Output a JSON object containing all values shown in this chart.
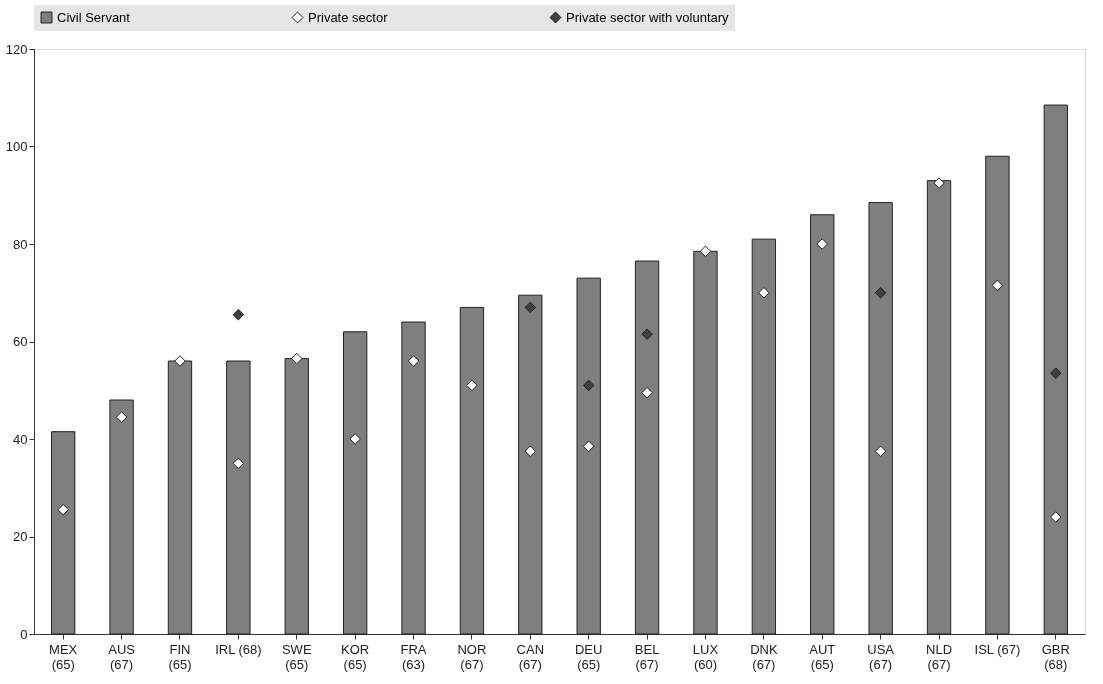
{
  "chart_data": {
    "type": "bar",
    "categories": [
      "MEX\n(65)",
      "AUS\n(67)",
      "FIN\n(65)",
      "IRL (68)",
      "SWE\n(65)",
      "KOR\n(65)",
      "FRA\n(63)",
      "NOR\n(67)",
      "CAN\n(67)",
      "DEU\n(65)",
      "BEL\n(67)",
      "LUX\n(60)",
      "DNK\n(67)",
      "AUT\n(65)",
      "USA\n(67)",
      "NLD\n(67)",
      "ISL (67)",
      "GBR\n(68)"
    ],
    "series": [
      {
        "name": "Civil Servant",
        "marker": "square",
        "color": "#7f7f7f",
        "values": [
          41.5,
          48,
          56,
          56,
          56.5,
          62,
          64,
          67,
          69.5,
          73,
          76.5,
          78.5,
          81,
          86,
          88.5,
          93,
          98,
          108.5
        ]
      },
      {
        "name": "Private sector",
        "type": "scatter",
        "marker": "diamond",
        "color": "#ffffff",
        "values": [
          25.5,
          44.5,
          56,
          35,
          56.5,
          40,
          56,
          51,
          37.5,
          38.5,
          49.5,
          78.5,
          70,
          80,
          37.5,
          92.5,
          71.5,
          24
        ]
      },
      {
        "name": "Private sector with voluntary",
        "type": "scatter",
        "marker": "diamond",
        "color": "#404040",
        "values": [
          null,
          null,
          null,
          65.5,
          null,
          null,
          null,
          null,
          67,
          51,
          61.5,
          null,
          null,
          null,
          70,
          null,
          null,
          53.5
        ]
      }
    ],
    "ylim": [
      0,
      120
    ],
    "yticks": [
      0,
      20,
      40,
      60,
      80,
      100,
      120
    ],
    "grid": false,
    "legend": "top"
  }
}
